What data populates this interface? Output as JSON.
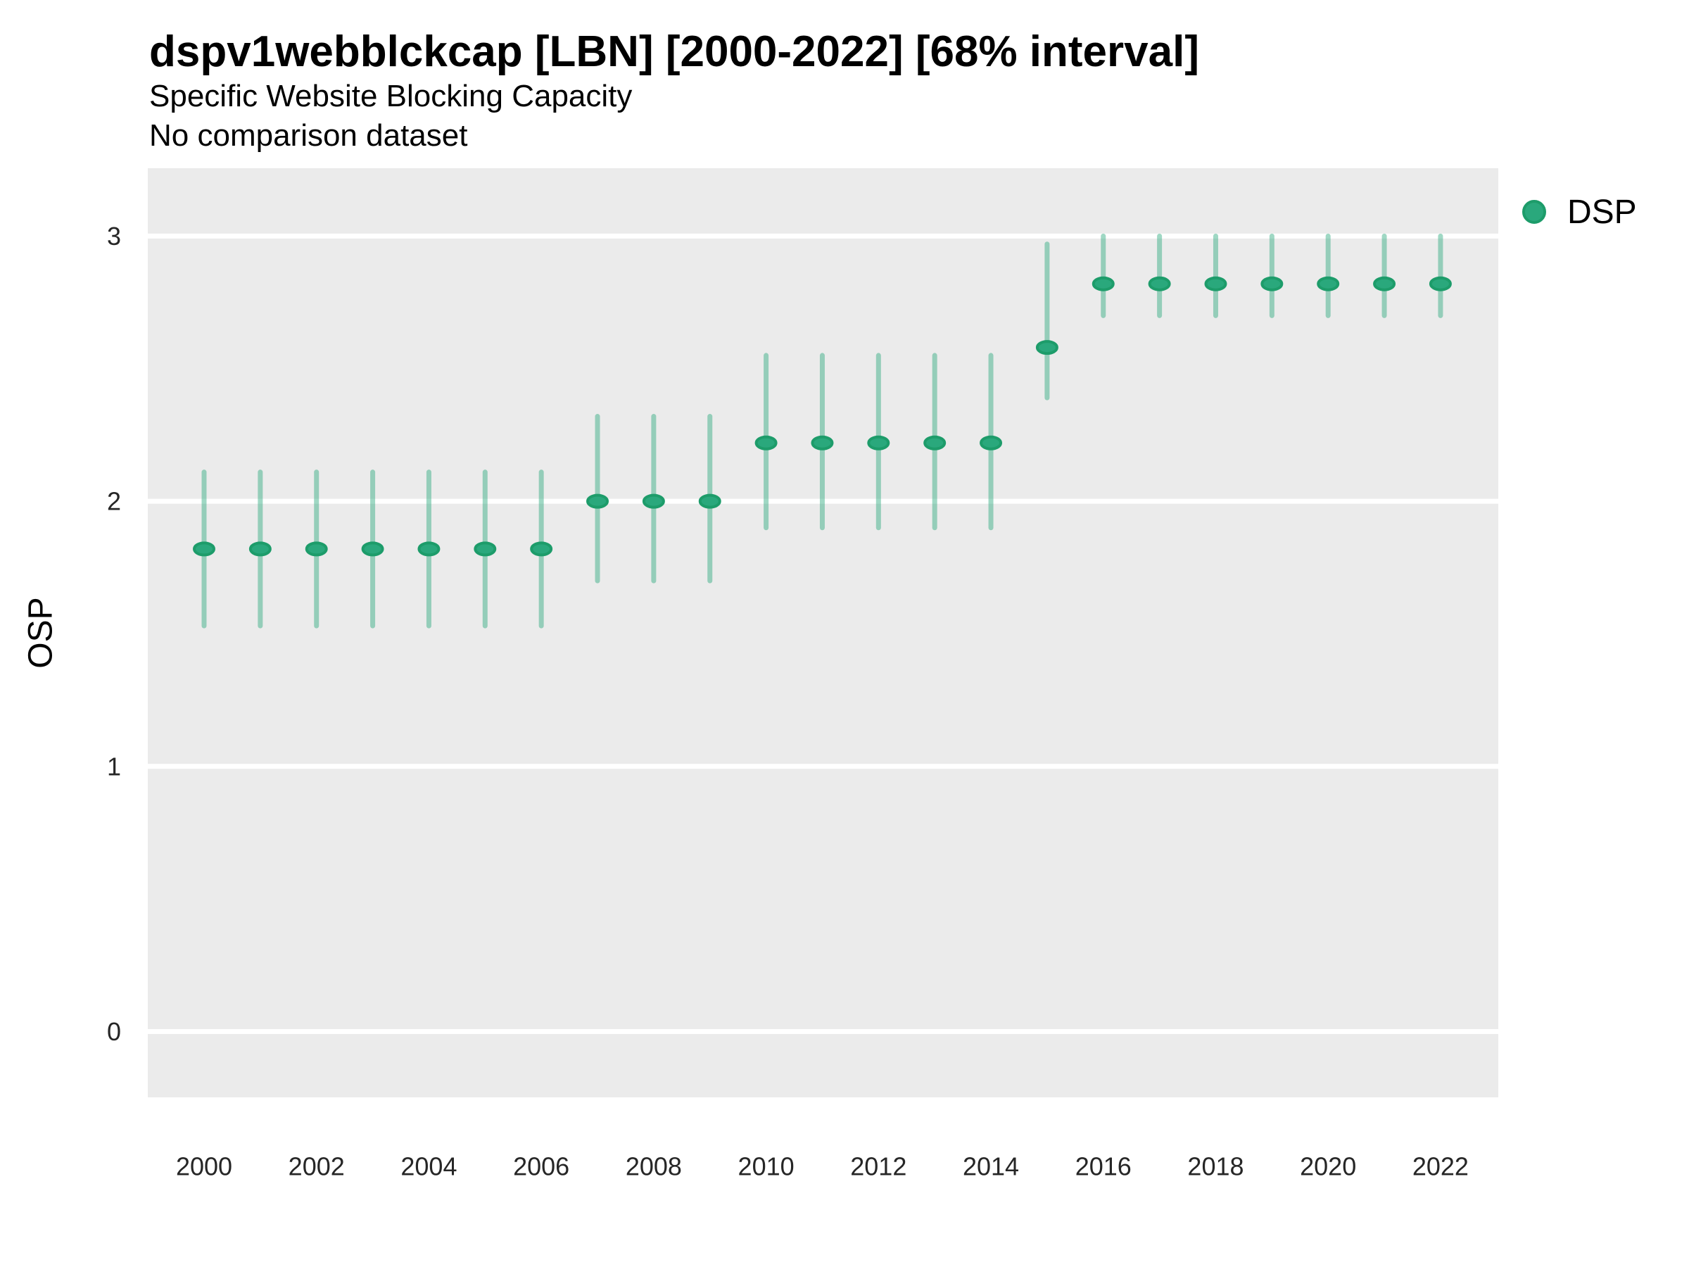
{
  "chart_data": {
    "type": "scatter",
    "title": "dspv1webblckcap [LBN] [2000-2022] [68% interval]",
    "subtitle": "Specific Website Blocking Capacity",
    "note": "No comparison dataset",
    "interval_label": "68% interval",
    "country": "LBN",
    "xlabel": "",
    "ylabel": "OSP",
    "x_ticks": [
      2000,
      2002,
      2004,
      2006,
      2008,
      2010,
      2012,
      2014,
      2016,
      2018,
      2020,
      2022
    ],
    "y_ticks": [
      0,
      1,
      2,
      3
    ],
    "xlim": [
      1999,
      2023
    ],
    "ylim": [
      -0.25,
      3.25
    ],
    "grid": "major-horizontal-white",
    "panel_background": "#ebebeb",
    "gridline_color": "#ffffff",
    "tick_label_color": "#262626",
    "legend": {
      "position": "right",
      "items": [
        {
          "label": "DSP",
          "color": "#2aa87c",
          "border": "#1d9c6a"
        }
      ]
    },
    "series": [
      {
        "name": "DSP",
        "point_color": "#2aa87c",
        "point_border": "#1d9c6a",
        "interval_color": "rgba(42,168,124,0.45)",
        "x": [
          2000,
          2001,
          2002,
          2003,
          2004,
          2005,
          2006,
          2007,
          2008,
          2009,
          2010,
          2011,
          2012,
          2013,
          2014,
          2015,
          2016,
          2017,
          2018,
          2019,
          2020,
          2021,
          2022
        ],
        "y": [
          1.82,
          1.82,
          1.82,
          1.82,
          1.82,
          1.82,
          1.82,
          2.0,
          2.0,
          2.0,
          2.22,
          2.22,
          2.22,
          2.22,
          2.22,
          2.58,
          2.82,
          2.82,
          2.82,
          2.82,
          2.82,
          2.82,
          2.82
        ],
        "y_low": [
          1.53,
          1.53,
          1.53,
          1.53,
          1.53,
          1.53,
          1.53,
          1.7,
          1.7,
          1.7,
          1.9,
          1.9,
          1.9,
          1.9,
          1.9,
          2.39,
          2.7,
          2.7,
          2.7,
          2.7,
          2.7,
          2.7,
          2.7
        ],
        "y_high": [
          2.11,
          2.11,
          2.11,
          2.11,
          2.11,
          2.11,
          2.11,
          2.32,
          2.32,
          2.32,
          2.55,
          2.55,
          2.55,
          2.55,
          2.55,
          2.97,
          3.0,
          3.0,
          3.0,
          3.0,
          3.0,
          3.0,
          3.0
        ]
      }
    ]
  }
}
